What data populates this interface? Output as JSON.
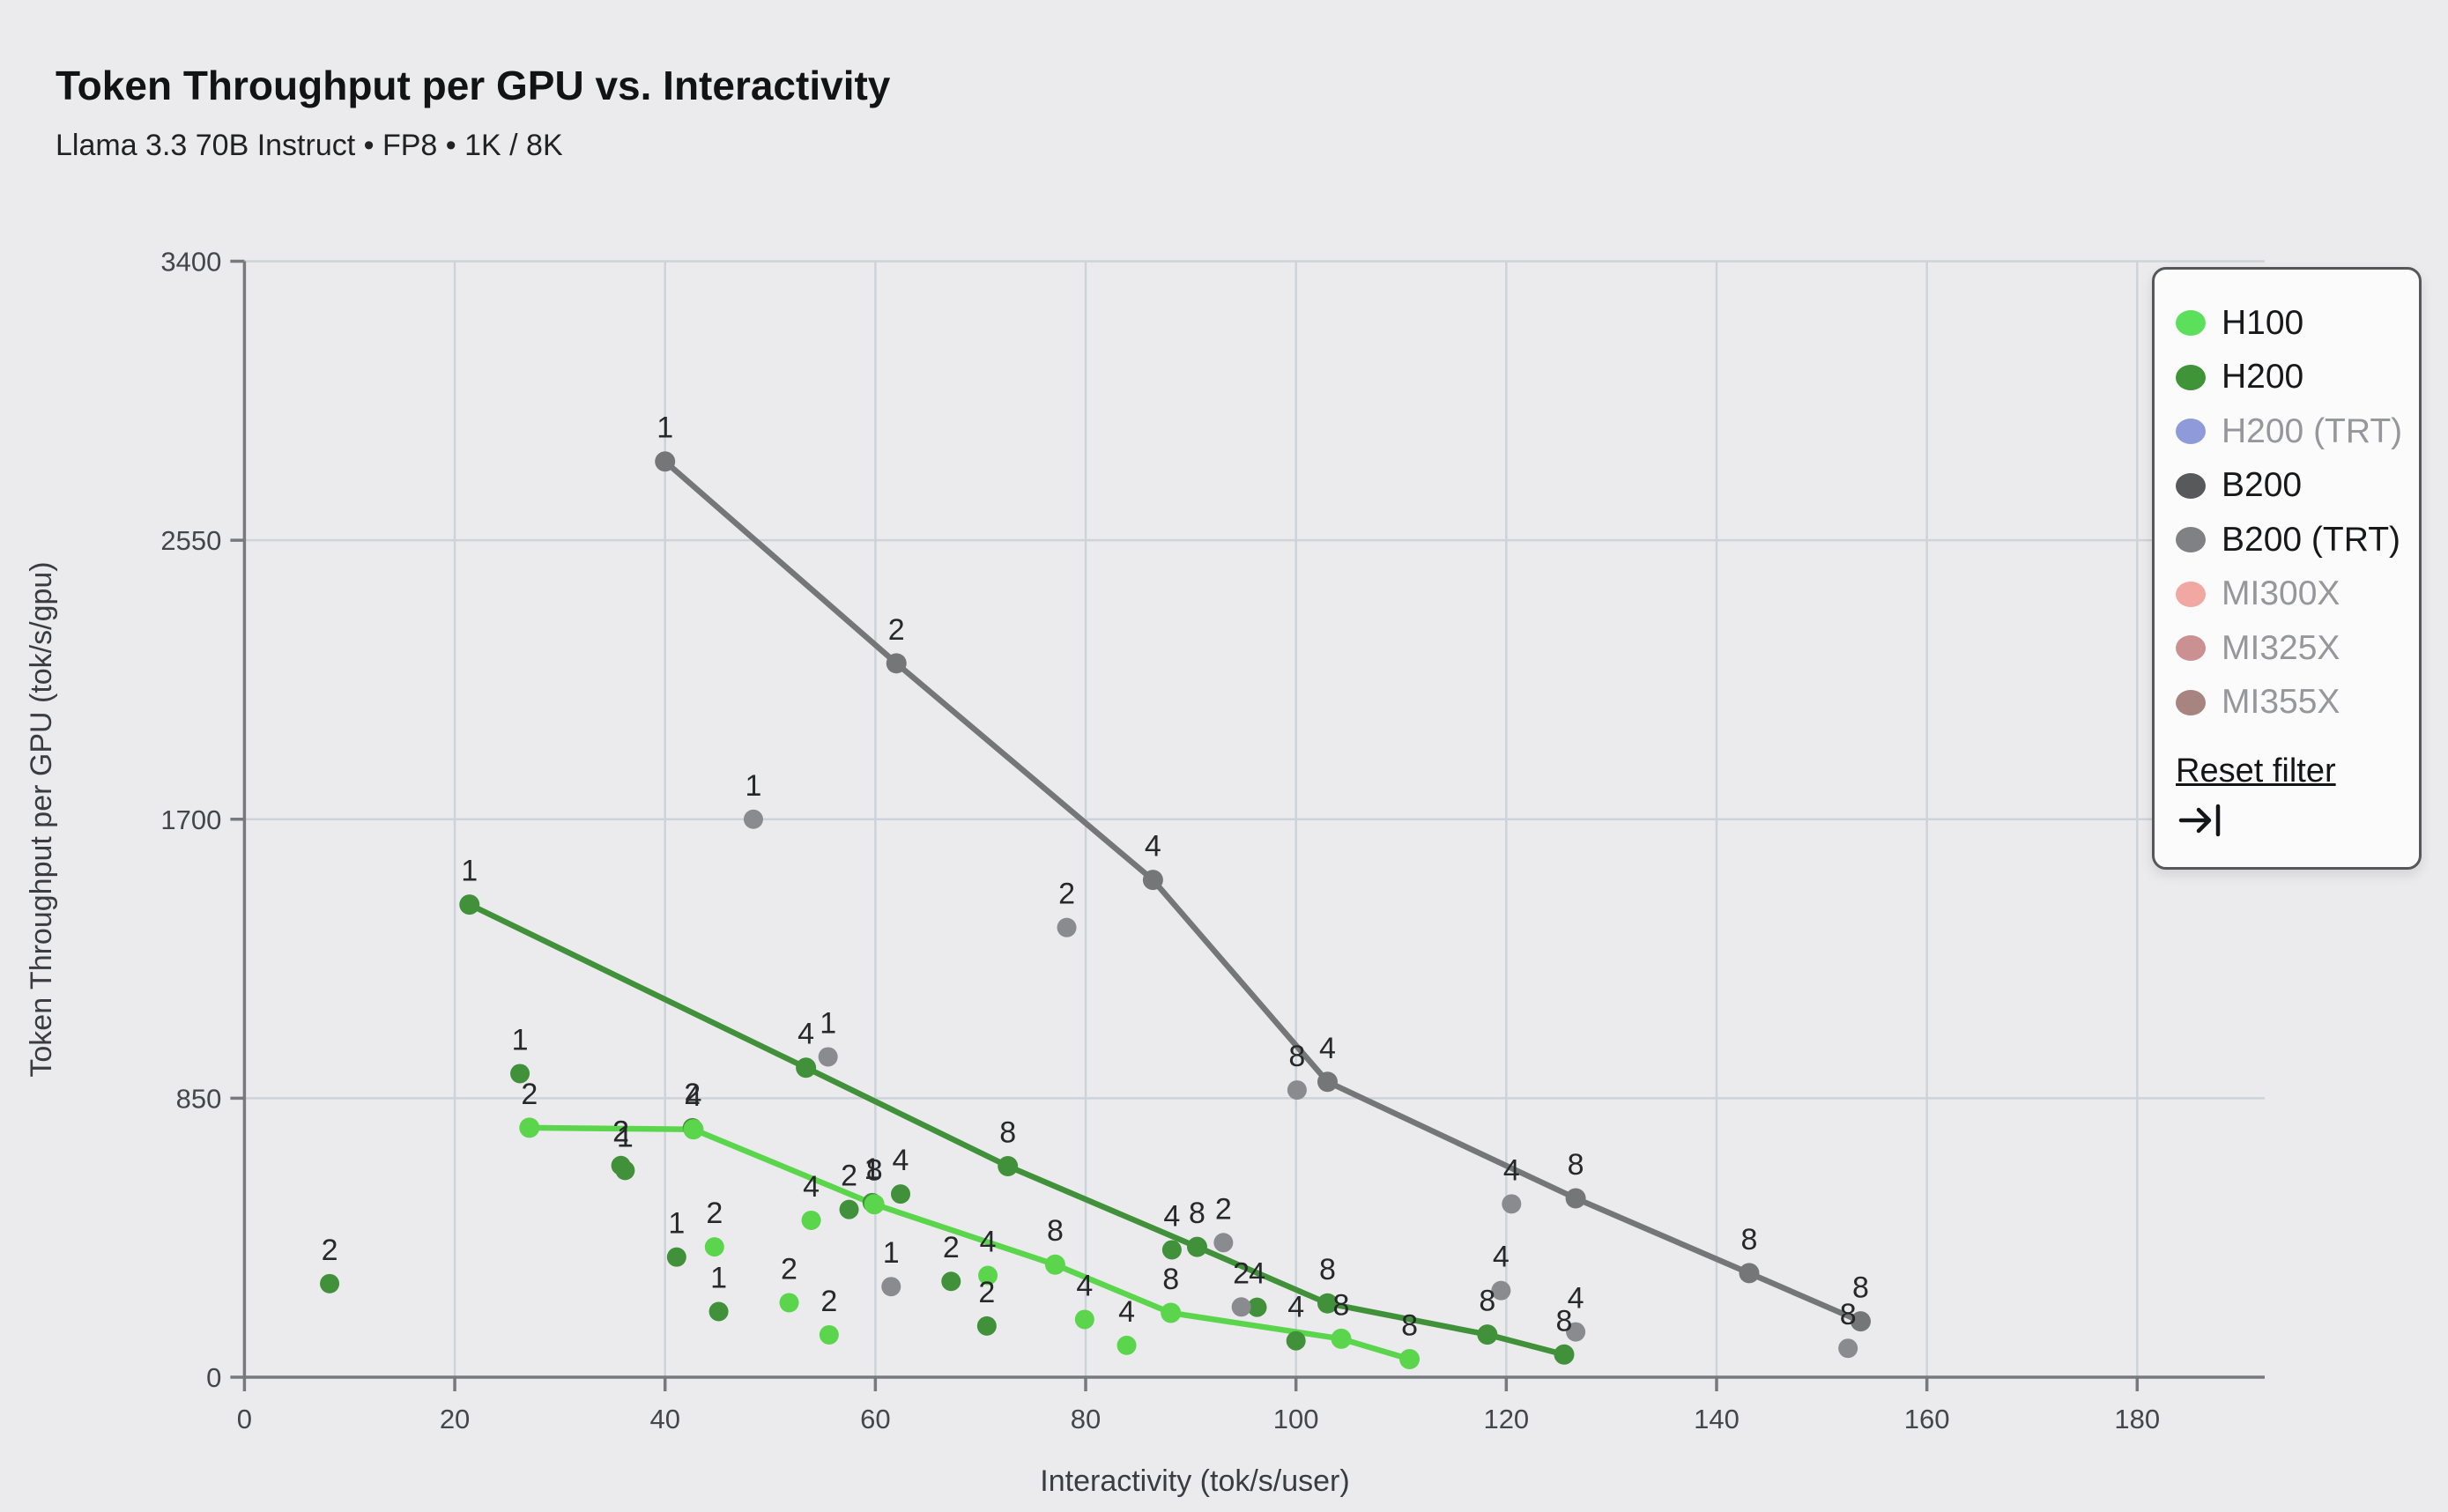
{
  "header": {
    "title": "Token Throughput per GPU vs. Interactivity",
    "subtitle": "Llama 3.3 70B Instruct • FP8 • 1K / 8K"
  },
  "legend": {
    "reset_label": "Reset filter",
    "collapse_icon": "arrow-bar-to-right-icon"
  },
  "chart_data": {
    "type": "scatter",
    "title": "Token Throughput per GPU vs. Interactivity",
    "xlabel": "Interactivity (tok/s/user)",
    "ylabel": "Token Throughput per GPU (tok/s/gpu)",
    "xlim": [
      0,
      180
    ],
    "ylim": [
      0,
      3400
    ],
    "x_ticks": [
      0,
      20,
      40,
      60,
      80,
      100,
      120,
      140,
      160,
      180
    ],
    "y_ticks": [
      0,
      850,
      1700,
      2550,
      3400
    ],
    "grid": true,
    "legend_position": "top-right",
    "point_label_meaning": "GPU count per config",
    "series": [
      {
        "name": "H100",
        "active": true,
        "legend_color": "#5ce05c",
        "plot_color": "#5bd64c",
        "frontier": [
          {
            "x": 27.1,
            "y": 760,
            "n": "2"
          },
          {
            "x": 42.7,
            "y": 755,
            "n": "4"
          },
          {
            "x": 59.9,
            "y": 527,
            "n": "8"
          },
          {
            "x": 77.1,
            "y": 343,
            "n": "8"
          },
          {
            "x": 88.1,
            "y": 196,
            "n": "8"
          },
          {
            "x": 104.3,
            "y": 117,
            "n": "8"
          },
          {
            "x": 110.8,
            "y": 55,
            "n": "8"
          }
        ],
        "scatter": [
          {
            "x": 44.7,
            "y": 397,
            "n": "2"
          },
          {
            "x": 51.8,
            "y": 227,
            "n": "2"
          },
          {
            "x": 53.9,
            "y": 478,
            "n": "4"
          },
          {
            "x": 55.6,
            "y": 129,
            "n": "2"
          },
          {
            "x": 70.7,
            "y": 310,
            "n": "4"
          },
          {
            "x": 79.9,
            "y": 176,
            "n": "4"
          },
          {
            "x": 83.9,
            "y": 97,
            "n": "4"
          }
        ]
      },
      {
        "name": "H200",
        "active": true,
        "legend_color": "#3f9437",
        "plot_color": "#41913a",
        "frontier": [
          {
            "x": 21.4,
            "y": 1440,
            "n": "1"
          },
          {
            "x": 53.4,
            "y": 943,
            "n": "4"
          },
          {
            "x": 72.6,
            "y": 643,
            "n": "8"
          },
          {
            "x": 90.6,
            "y": 397,
            "n": "8"
          },
          {
            "x": 103.0,
            "y": 225,
            "n": "8"
          },
          {
            "x": 118.2,
            "y": 130,
            "n": "8"
          },
          {
            "x": 125.5,
            "y": 69,
            "n": "8"
          }
        ],
        "scatter": [
          {
            "x": 8.1,
            "y": 285,
            "n": "2"
          },
          {
            "x": 26.2,
            "y": 925,
            "n": "1"
          },
          {
            "x": 35.8,
            "y": 645,
            "n": "2"
          },
          {
            "x": 36.2,
            "y": 630,
            "n": "1"
          },
          {
            "x": 41.1,
            "y": 366,
            "n": "1"
          },
          {
            "x": 42.6,
            "y": 760,
            "n": "2"
          },
          {
            "x": 45.1,
            "y": 200,
            "n": "1"
          },
          {
            "x": 57.5,
            "y": 511,
            "n": "2"
          },
          {
            "x": 59.7,
            "y": 532,
            "n": "1"
          },
          {
            "x": 62.4,
            "y": 558,
            "n": "4"
          },
          {
            "x": 67.2,
            "y": 292,
            "n": "2"
          },
          {
            "x": 70.6,
            "y": 156,
            "n": "2"
          },
          {
            "x": 88.2,
            "y": 388,
            "n": "4"
          },
          {
            "x": 96.3,
            "y": 213,
            "n": "4"
          },
          {
            "x": 100.0,
            "y": 111,
            "n": "4"
          }
        ]
      },
      {
        "name": "H200 (TRT)",
        "active": false,
        "legend_color": "#8e9ad9",
        "plot_color": "#8e9ad9",
        "frontier": [],
        "scatter": []
      },
      {
        "name": "B200",
        "active": true,
        "legend_color": "#58595b",
        "plot_color": "#747678",
        "frontier": [
          {
            "x": 40.0,
            "y": 2790,
            "n": "1"
          },
          {
            "x": 62.0,
            "y": 2175,
            "n": "2"
          },
          {
            "x": 86.4,
            "y": 1515,
            "n": "4"
          },
          {
            "x": 103.0,
            "y": 900,
            "n": "4"
          },
          {
            "x": 126.6,
            "y": 545,
            "n": "8"
          },
          {
            "x": 143.1,
            "y": 317,
            "n": "8"
          },
          {
            "x": 153.7,
            "y": 170,
            "n": "8"
          }
        ],
        "scatter": []
      },
      {
        "name": "B200 (TRT)",
        "active": true,
        "legend_color": "#808184",
        "plot_color": "#8a8b8e",
        "frontier": [],
        "scatter": [
          {
            "x": 48.4,
            "y": 1700,
            "n": "1"
          },
          {
            "x": 55.5,
            "y": 976,
            "n": "1"
          },
          {
            "x": 61.5,
            "y": 276,
            "n": "1"
          },
          {
            "x": 78.2,
            "y": 1370,
            "n": "2"
          },
          {
            "x": 93.1,
            "y": 410,
            "n": "2"
          },
          {
            "x": 94.8,
            "y": 214,
            "n": "2"
          },
          {
            "x": 100.1,
            "y": 875,
            "n": "8"
          },
          {
            "x": 119.5,
            "y": 264,
            "n": "4"
          },
          {
            "x": 120.5,
            "y": 528,
            "n": "4"
          },
          {
            "x": 126.6,
            "y": 138,
            "n": "4"
          },
          {
            "x": 152.5,
            "y": 88,
            "n": "8"
          }
        ]
      },
      {
        "name": "MI300X",
        "active": false,
        "legend_color": "#f2a8a2",
        "plot_color": "#f2a8a2",
        "frontier": [],
        "scatter": []
      },
      {
        "name": "MI325X",
        "active": false,
        "legend_color": "#cb9091",
        "plot_color": "#cb9091",
        "frontier": [],
        "scatter": []
      },
      {
        "name": "MI355X",
        "active": false,
        "legend_color": "#a88481",
        "plot_color": "#a88481",
        "frontier": [],
        "scatter": []
      }
    ]
  }
}
